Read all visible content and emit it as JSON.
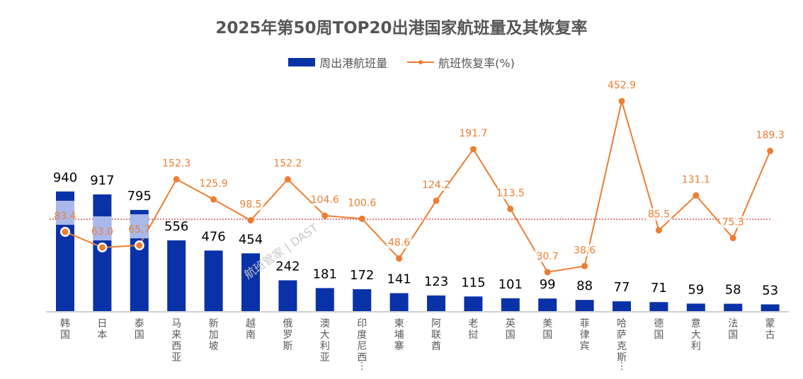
{
  "chart_data": {
    "type": "bar",
    "title": "2025年第50周TOP20出港国家航班量及其恢复率",
    "xlabel": "",
    "ylabel": "",
    "legend_position": "top-center",
    "grid": false,
    "categories": [
      "韩国",
      "日本",
      "泰国",
      "马来西亚",
      "新加坡",
      "越南",
      "俄罗斯",
      "澳大利亚",
      "印度尼西…",
      "柬埔寨",
      "阿联酋",
      "老挝",
      "英国",
      "美国",
      "菲律宾",
      "哈萨克斯…",
      "德国",
      "意大利",
      "法国",
      "蒙古"
    ],
    "series": [
      {
        "name": "周出港航班量",
        "type": "bar",
        "axis": "primary",
        "color": "#0A32A8",
        "values": [
          940,
          917,
          795,
          556,
          476,
          454,
          242,
          181,
          172,
          141,
          123,
          115,
          101,
          99,
          88,
          77,
          71,
          59,
          58,
          53
        ]
      },
      {
        "name": "航班恢复率(%)",
        "type": "line",
        "axis": "secondary",
        "color": "#ED7D31",
        "values": [
          83.4,
          63.0,
          65.7,
          152.3,
          125.9,
          98.5,
          152.2,
          104.6,
          100.6,
          48.6,
          124.2,
          191.7,
          113.5,
          30.7,
          38.6,
          452.9,
          85.5,
          131.1,
          75.3,
          189.3
        ]
      }
    ],
    "reference_line": {
      "value": 100,
      "axis": "secondary",
      "color": "#E0303A",
      "style": "dotted"
    },
    "watermark": "航班管家 | DAST"
  }
}
